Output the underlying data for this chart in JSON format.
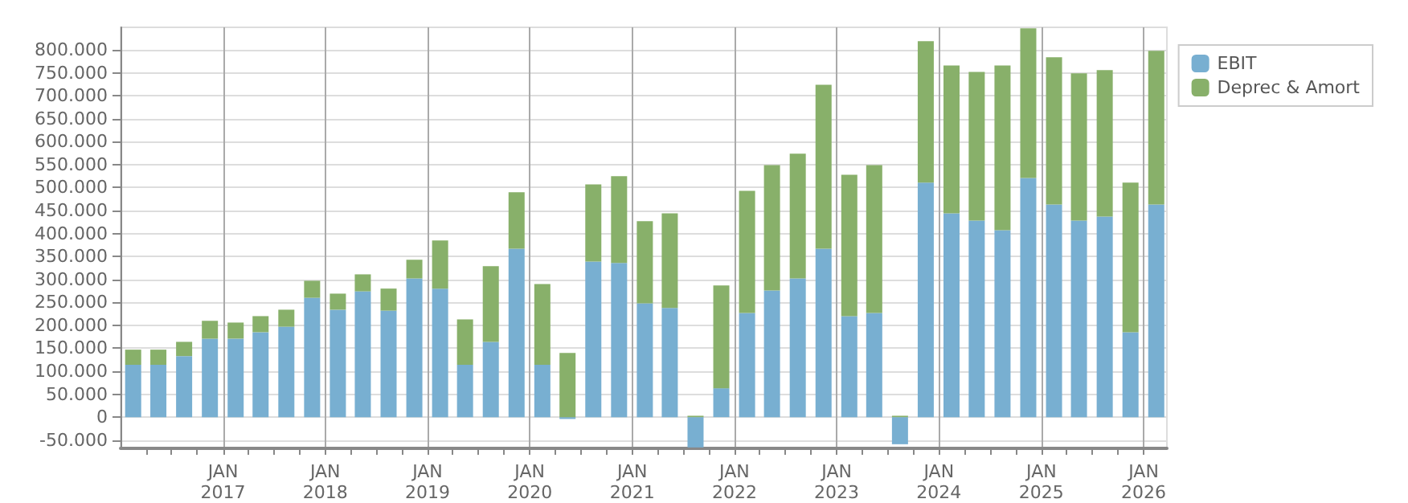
{
  "chart_data": {
    "type": "bar",
    "stacked": true,
    "legend": "right",
    "grid": true,
    "x": [
      "2016-02-15",
      "2016-05-15",
      "2016-08-15",
      "2016-11-15",
      "2017-02-15",
      "2017-05-15",
      "2017-08-15",
      "2017-11-15",
      "2018-02-15",
      "2018-05-15",
      "2018-08-15",
      "2018-11-15",
      "2019-02-15",
      "2019-05-15",
      "2019-08-15",
      "2019-11-15",
      "2020-02-15",
      "2020-05-15",
      "2020-08-15",
      "2020-11-15",
      "2021-02-15",
      "2021-05-15",
      "2021-08-15",
      "2021-11-15",
      "2022-02-15",
      "2022-05-15",
      "2022-08-15",
      "2022-11-15",
      "2023-02-15",
      "2023-05-15",
      "2023-08-15",
      "2023-11-15",
      "2024-02-15",
      "2024-05-15",
      "2024-08-15",
      "2024-11-15",
      "2025-02-15",
      "2025-05-15",
      "2025-08-15",
      "2025-11-15",
      "2026-02-15"
    ],
    "series": [
      {
        "name": "EBIT",
        "color": "#78afd1",
        "values": [
          114000,
          114000,
          133000,
          171000,
          171000,
          185000,
          197000,
          260000,
          234000,
          274000,
          232000,
          302000,
          280000,
          114000,
          164000,
          367000,
          114000,
          -4000,
          339000,
          336000,
          248000,
          238000,
          -66000,
          63000,
          227000,
          276000,
          302000,
          367000,
          220000,
          227000,
          -59000,
          511000,
          444000,
          428000,
          407000,
          521000,
          463000,
          428000,
          437000,
          185000,
          463000
        ]
      },
      {
        "name": "Deprec & Amort",
        "color": "#88b06a",
        "values": [
          33000,
          33000,
          31000,
          39000,
          35000,
          35000,
          37000,
          37000,
          35000,
          37000,
          48000,
          41000,
          105000,
          99000,
          165000,
          123000,
          176000,
          140000,
          168000,
          189000,
          179000,
          206000,
          3000,
          224000,
          266000,
          273000,
          272000,
          357000,
          308000,
          322000,
          3000,
          308000,
          322000,
          324000,
          359000,
          326000,
          321000,
          321000,
          319000,
          326000,
          335000
        ]
      }
    ],
    "xlim": [
      "2016-01-01",
      "2026-03-25"
    ],
    "xticks": [
      {
        "value": "2016-04-01",
        "label": null
      },
      {
        "value": "2016-07-01",
        "label": null
      },
      {
        "value": "2016-10-01",
        "label": null
      },
      {
        "value": "2017-01-01",
        "label": "JAN\n2017"
      },
      {
        "value": "2017-04-01",
        "label": null
      },
      {
        "value": "2017-07-01",
        "label": null
      },
      {
        "value": "2017-10-01",
        "label": null
      },
      {
        "value": "2018-01-01",
        "label": "JAN\n2018"
      },
      {
        "value": "2018-04-01",
        "label": null
      },
      {
        "value": "2018-07-01",
        "label": null
      },
      {
        "value": "2018-10-01",
        "label": null
      },
      {
        "value": "2019-01-01",
        "label": "JAN\n2019"
      },
      {
        "value": "2019-04-01",
        "label": null
      },
      {
        "value": "2019-07-01",
        "label": null
      },
      {
        "value": "2019-10-01",
        "label": null
      },
      {
        "value": "2020-01-01",
        "label": "JAN\n2020"
      },
      {
        "value": "2020-04-01",
        "label": null
      },
      {
        "value": "2020-07-01",
        "label": null
      },
      {
        "value": "2020-10-01",
        "label": null
      },
      {
        "value": "2021-01-01",
        "label": "JAN\n2021"
      },
      {
        "value": "2021-04-01",
        "label": null
      },
      {
        "value": "2021-07-01",
        "label": null
      },
      {
        "value": "2021-10-01",
        "label": null
      },
      {
        "value": "2022-01-01",
        "label": "JAN\n2022"
      },
      {
        "value": "2022-04-01",
        "label": null
      },
      {
        "value": "2022-07-01",
        "label": null
      },
      {
        "value": "2022-10-01",
        "label": null
      },
      {
        "value": "2023-01-01",
        "label": "JAN\n2023"
      },
      {
        "value": "2023-04-01",
        "label": null
      },
      {
        "value": "2023-07-01",
        "label": null
      },
      {
        "value": "2023-10-01",
        "label": null
      },
      {
        "value": "2024-01-01",
        "label": "JAN\n2024"
      },
      {
        "value": "2024-04-01",
        "label": null
      },
      {
        "value": "2024-07-01",
        "label": null
      },
      {
        "value": "2024-10-01",
        "label": null
      },
      {
        "value": "2025-01-01",
        "label": "JAN\n2025"
      },
      {
        "value": "2025-04-01",
        "label": null
      },
      {
        "value": "2025-07-01",
        "label": null
      },
      {
        "value": "2025-10-01",
        "label": null
      },
      {
        "value": "2026-01-01",
        "label": "JAN\n2026"
      }
    ],
    "ylim": [
      -68000,
      849000
    ],
    "yticks": [
      {
        "value": -50000,
        "label": "-50.000"
      },
      {
        "value": 0,
        "label": "0"
      },
      {
        "value": 50000,
        "label": "50.000"
      },
      {
        "value": 100000,
        "label": "100.000"
      },
      {
        "value": 150000,
        "label": "150.000"
      },
      {
        "value": 200000,
        "label": "200.000"
      },
      {
        "value": 250000,
        "label": "250.000"
      },
      {
        "value": 300000,
        "label": "300.000"
      },
      {
        "value": 350000,
        "label": "350.000"
      },
      {
        "value": 400000,
        "label": "400.000"
      },
      {
        "value": 450000,
        "label": "450.000"
      },
      {
        "value": 500000,
        "label": "500.000"
      },
      {
        "value": 550000,
        "label": "550.000"
      },
      {
        "value": 600000,
        "label": "600.000"
      },
      {
        "value": 650000,
        "label": "650.000"
      },
      {
        "value": 700000,
        "label": "700.000"
      },
      {
        "value": 750000,
        "label": "750.000"
      },
      {
        "value": 800000,
        "label": "800.000"
      }
    ]
  }
}
